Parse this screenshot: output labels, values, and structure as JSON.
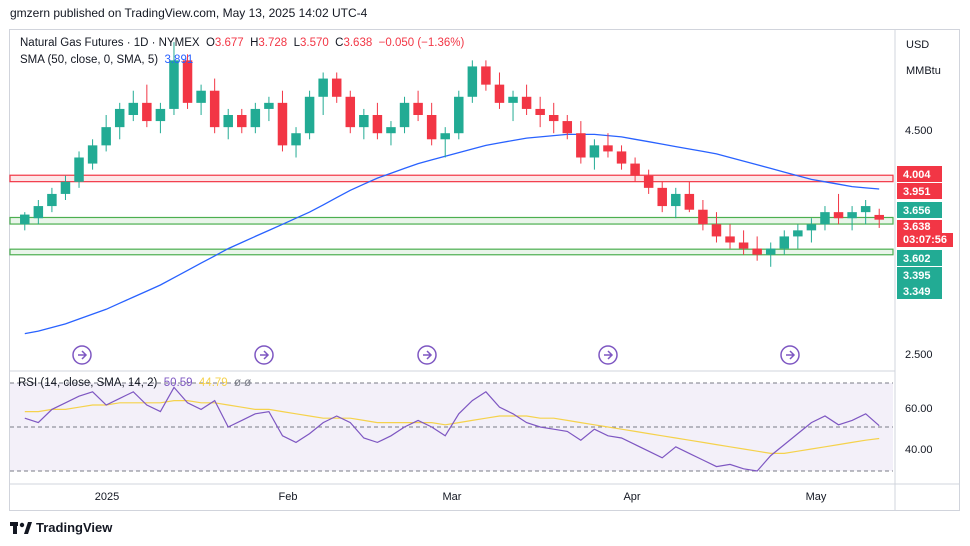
{
  "published": "gmzern published on TradingView.com, May 13, 2025 14:02 UTC-4",
  "legend": {
    "symbol": "Natural Gas Futures · 1D · NYMEX",
    "o_label": "O",
    "o": "3.677",
    "h_label": "H",
    "h": "3.728",
    "l_label": "L",
    "l": "3.570",
    "c_label": "C",
    "c": "3.638",
    "change": "−0.050 (−1.36%)",
    "sma_label": "SMA (50, close, 0, SMA, 5)",
    "sma_value": "3.891"
  },
  "rsi_legend": {
    "label": "RSI (14, close, SMA, 14, 2)",
    "rsi": "50.59",
    "sma": "44.79",
    "extra": "ø ø"
  },
  "axis": {
    "currency": "USD",
    "unit": "MMBtu",
    "price_ticks": [
      "4.500",
      "2.500"
    ],
    "rsi_ticks": [
      "60.00",
      "40.00"
    ],
    "x_ticks": [
      "2025",
      "Feb",
      "Mar",
      "Apr",
      "May"
    ]
  },
  "price_labels": [
    {
      "text": "4.004",
      "color": "#f23645"
    },
    {
      "text": "3.951",
      "color": "#f23645"
    },
    {
      "text": "3.656",
      "color": "#22ab94"
    },
    {
      "text": "3.638",
      "color": "#f23645"
    },
    {
      "text": "03:07:56",
      "color": "#f23645"
    },
    {
      "text": "3.602",
      "color": "#22ab94"
    },
    {
      "text": "3.395",
      "color": "#22ab94"
    },
    {
      "text": "3.349",
      "color": "#22ab94"
    }
  ],
  "footer": {
    "brand": "TradingView"
  },
  "colors": {
    "up": "#22ab94",
    "down": "#f23645",
    "sma": "#2962ff",
    "rsi": "#7e57c2",
    "rsi_sma": "#f5d24c",
    "res_zone": "#f23645",
    "sup_zone": "#4caf50"
  },
  "chart_data": {
    "type": "candlestick",
    "price_range": [
      2.4,
      5.2
    ],
    "rsi_range": [
      25,
      75
    ],
    "rsi_levels": [
      70,
      50,
      30
    ],
    "zones": [
      {
        "kind": "resistance",
        "low": 3.951,
        "high": 4.004
      },
      {
        "kind": "support",
        "low": 3.602,
        "high": 3.656
      },
      {
        "kind": "support",
        "low": 3.349,
        "high": 3.395
      }
    ],
    "dividend_markers": 5,
    "candles": [
      [
        3.6,
        3.7,
        3.55,
        3.68
      ],
      [
        3.65,
        3.8,
        3.6,
        3.75
      ],
      [
        3.75,
        3.9,
        3.7,
        3.85
      ],
      [
        3.85,
        4.0,
        3.8,
        3.95
      ],
      [
        3.95,
        4.2,
        3.9,
        4.15
      ],
      [
        4.1,
        4.3,
        4.05,
        4.25
      ],
      [
        4.25,
        4.5,
        4.2,
        4.4
      ],
      [
        4.4,
        4.6,
        4.3,
        4.55
      ],
      [
        4.5,
        4.7,
        4.45,
        4.6
      ],
      [
        4.6,
        4.75,
        4.4,
        4.45
      ],
      [
        4.45,
        4.6,
        4.35,
        4.55
      ],
      [
        4.55,
        5.1,
        4.5,
        4.95
      ],
      [
        4.95,
        5.0,
        4.55,
        4.6
      ],
      [
        4.6,
        4.75,
        4.5,
        4.7
      ],
      [
        4.7,
        4.8,
        4.35,
        4.4
      ],
      [
        4.4,
        4.55,
        4.3,
        4.5
      ],
      [
        4.5,
        4.55,
        4.35,
        4.4
      ],
      [
        4.4,
        4.6,
        4.35,
        4.55
      ],
      [
        4.55,
        4.65,
        4.45,
        4.6
      ],
      [
        4.6,
        4.7,
        4.2,
        4.25
      ],
      [
        4.25,
        4.4,
        4.15,
        4.35
      ],
      [
        4.35,
        4.7,
        4.3,
        4.65
      ],
      [
        4.65,
        4.85,
        4.5,
        4.8
      ],
      [
        4.8,
        4.85,
        4.6,
        4.65
      ],
      [
        4.65,
        4.7,
        4.35,
        4.4
      ],
      [
        4.4,
        4.55,
        4.3,
        4.5
      ],
      [
        4.5,
        4.6,
        4.3,
        4.35
      ],
      [
        4.35,
        4.45,
        4.25,
        4.4
      ],
      [
        4.4,
        4.65,
        4.35,
        4.6
      ],
      [
        4.6,
        4.7,
        4.45,
        4.5
      ],
      [
        4.5,
        4.6,
        4.25,
        4.3
      ],
      [
        4.3,
        4.4,
        4.15,
        4.35
      ],
      [
        4.35,
        4.7,
        4.3,
        4.65
      ],
      [
        4.65,
        4.95,
        4.6,
        4.9
      ],
      [
        4.9,
        4.95,
        4.7,
        4.75
      ],
      [
        4.75,
        4.85,
        4.55,
        4.6
      ],
      [
        4.6,
        4.7,
        4.45,
        4.65
      ],
      [
        4.65,
        4.75,
        4.5,
        4.55
      ],
      [
        4.55,
        4.65,
        4.4,
        4.5
      ],
      [
        4.5,
        4.6,
        4.35,
        4.45
      ],
      [
        4.45,
        4.5,
        4.3,
        4.35
      ],
      [
        4.35,
        4.45,
        4.1,
        4.15
      ],
      [
        4.15,
        4.3,
        4.05,
        4.25
      ],
      [
        4.25,
        4.35,
        4.15,
        4.2
      ],
      [
        4.2,
        4.25,
        4.05,
        4.1
      ],
      [
        4.1,
        4.15,
        3.95,
        4.0
      ],
      [
        4.0,
        4.05,
        3.85,
        3.9
      ],
      [
        3.9,
        3.95,
        3.7,
        3.75
      ],
      [
        3.75,
        3.9,
        3.65,
        3.85
      ],
      [
        3.85,
        3.95,
        3.7,
        3.72
      ],
      [
        3.72,
        3.8,
        3.55,
        3.6
      ],
      [
        3.6,
        3.7,
        3.45,
        3.5
      ],
      [
        3.5,
        3.6,
        3.4,
        3.45
      ],
      [
        3.45,
        3.55,
        3.35,
        3.4
      ],
      [
        3.4,
        3.5,
        3.3,
        3.35
      ],
      [
        3.35,
        3.45,
        3.25,
        3.4
      ],
      [
        3.4,
        3.55,
        3.35,
        3.5
      ],
      [
        3.5,
        3.6,
        3.4,
        3.55
      ],
      [
        3.55,
        3.65,
        3.45,
        3.6
      ],
      [
        3.6,
        3.75,
        3.55,
        3.7
      ],
      [
        3.7,
        3.85,
        3.6,
        3.65
      ],
      [
        3.65,
        3.75,
        3.55,
        3.7
      ],
      [
        3.7,
        3.8,
        3.6,
        3.75
      ],
      [
        3.677,
        3.728,
        3.57,
        3.638
      ]
    ],
    "sma": [
      2.7,
      2.72,
      2.75,
      2.78,
      2.82,
      2.86,
      2.9,
      2.95,
      3.0,
      3.05,
      3.1,
      3.16,
      3.22,
      3.28,
      3.34,
      3.4,
      3.45,
      3.5,
      3.55,
      3.6,
      3.65,
      3.7,
      3.76,
      3.82,
      3.88,
      3.93,
      3.98,
      4.02,
      4.06,
      4.1,
      4.13,
      4.16,
      4.19,
      4.22,
      4.25,
      4.27,
      4.29,
      4.31,
      4.32,
      4.33,
      4.34,
      4.34,
      4.34,
      4.33,
      4.32,
      4.3,
      4.28,
      4.26,
      4.24,
      4.22,
      4.2,
      4.18,
      4.15,
      4.12,
      4.09,
      4.06,
      4.03,
      4.0,
      3.97,
      3.95,
      3.93,
      3.91,
      3.9,
      3.891
    ],
    "rsi": [
      54,
      52,
      58,
      61,
      64,
      66,
      60,
      63,
      66,
      60,
      57,
      68,
      61,
      58,
      62,
      50,
      53,
      56,
      57,
      46,
      43,
      47,
      52,
      55,
      52,
      45,
      43,
      46,
      50,
      53,
      50,
      46,
      56,
      62,
      66,
      59,
      56,
      52,
      50,
      49,
      48,
      44,
      49,
      46,
      45,
      42,
      39,
      36,
      41,
      38,
      35,
      32,
      33,
      31,
      30,
      37,
      42,
      47,
      52,
      55,
      51,
      53,
      56,
      50.59
    ],
    "rsi_sma": [
      57,
      57,
      58,
      58,
      59,
      60,
      60,
      61,
      61,
      61,
      61,
      62,
      62,
      61,
      61,
      60,
      59,
      58,
      58,
      57,
      56,
      55,
      54,
      54,
      54,
      53,
      52,
      52,
      52,
      52,
      52,
      51,
      52,
      53,
      54,
      55,
      55,
      55,
      54,
      54,
      53,
      52,
      51,
      50,
      49,
      48,
      47,
      46,
      45,
      44,
      43,
      42,
      41,
      40,
      39,
      38,
      38,
      39,
      40,
      41,
      42,
      43,
      44,
      44.79
    ]
  }
}
